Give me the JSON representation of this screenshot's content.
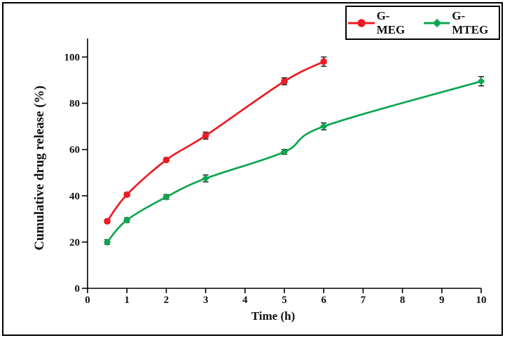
{
  "chart_data": {
    "type": "line",
    "title": "",
    "xlabel": "Time (h)",
    "ylabel": "Cumulative drug release (%)",
    "xlim": [
      0,
      10
    ],
    "ylim": [
      0,
      108
    ],
    "x_ticks": [
      0,
      1,
      2,
      3,
      4,
      5,
      6,
      7,
      8,
      9,
      10
    ],
    "y_ticks": [
      0,
      20,
      40,
      60,
      80,
      100
    ],
    "grid": false,
    "legend_position": "top-right",
    "error_bars": true,
    "axis_color": "#000000",
    "series": [
      {
        "name": "G-MEG",
        "color": "#ec1c24",
        "marker": "circle",
        "x": [
          0.5,
          1,
          2,
          3,
          5,
          6
        ],
        "y": [
          29,
          40.5,
          55.5,
          66,
          89.5,
          98
        ],
        "yerr": [
          0.8,
          0.8,
          0.8,
          1.5,
          1.5,
          2
        ]
      },
      {
        "name": "G-MTEG",
        "color": "#0ca64f",
        "marker": "diamond",
        "x": [
          0.5,
          1,
          2,
          3,
          5,
          6,
          10
        ],
        "y": [
          20,
          29.5,
          39.5,
          47.5,
          59,
          70,
          89.5
        ],
        "yerr": [
          1,
          1,
          1,
          1.5,
          1,
          1.5,
          2
        ]
      }
    ]
  }
}
